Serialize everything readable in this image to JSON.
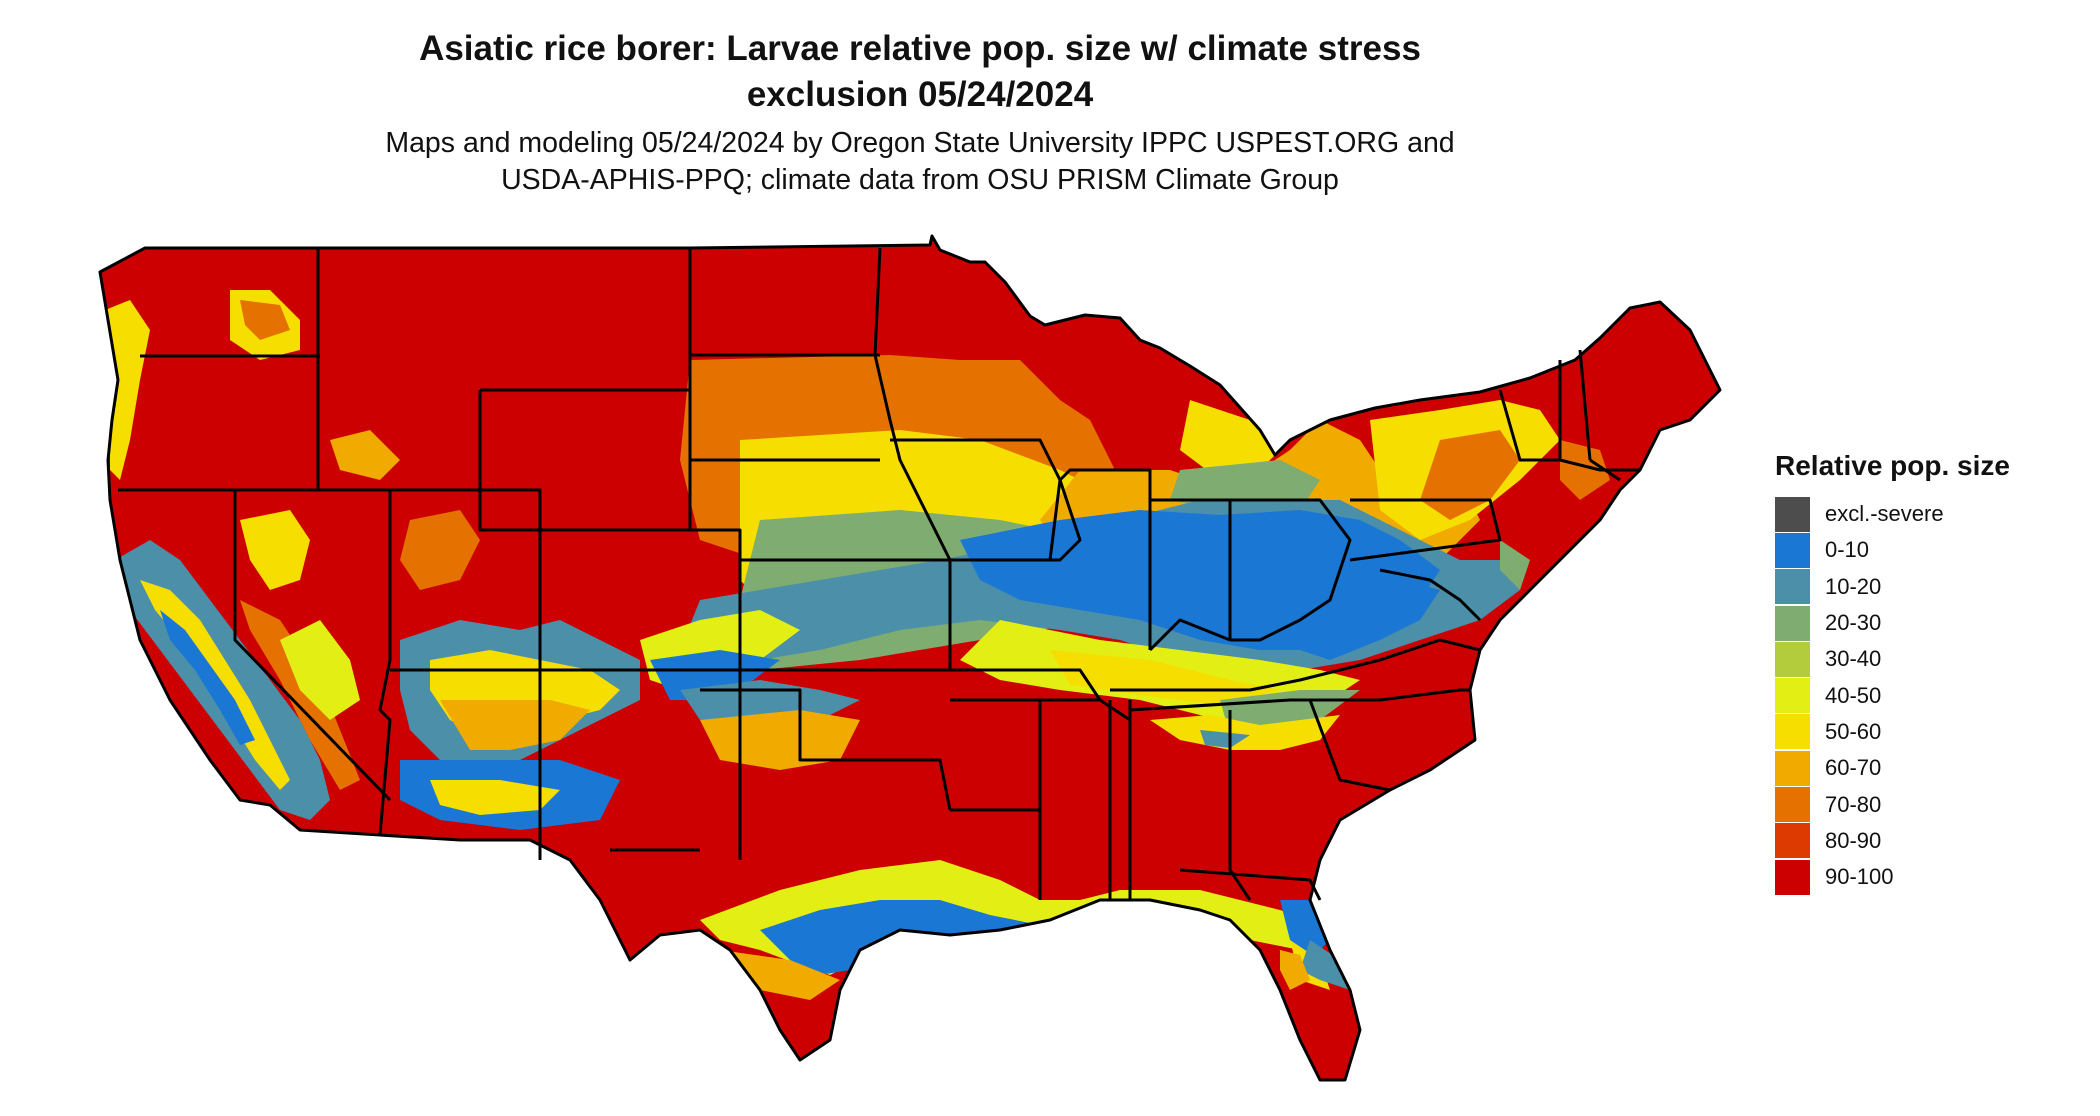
{
  "title": {
    "line1": "Asiatic rice borer: Larvae relative pop. size w/ climate stress",
    "line2": "exclusion 05/24/2024"
  },
  "subtitle": {
    "line1": "Maps and modeling 05/24/2024 by Oregon State University IPPC USPEST.ORG and",
    "line2": "USDA-APHIS-PPQ; climate data from OSU PRISM Climate Group"
  },
  "legend": {
    "title": "Relative pop. size",
    "items": [
      {
        "label": "excl.-severe",
        "color": "#4d4d4d"
      },
      {
        "label": "0-10",
        "color": "#1a77d4"
      },
      {
        "label": "10-20",
        "color": "#4b8fa8"
      },
      {
        "label": "20-30",
        "color": "#7fac70"
      },
      {
        "label": "30-40",
        "color": "#b3cc3c"
      },
      {
        "label": "40-50",
        "color": "#e3ef14"
      },
      {
        "label": "50-60",
        "color": "#f5de00"
      },
      {
        "label": "60-70",
        "color": "#f0aa00"
      },
      {
        "label": "70-80",
        "color": "#e57200"
      },
      {
        "label": "80-90",
        "color": "#dc3a00"
      },
      {
        "label": "90-100",
        "color": "#cc0000"
      }
    ]
  }
}
